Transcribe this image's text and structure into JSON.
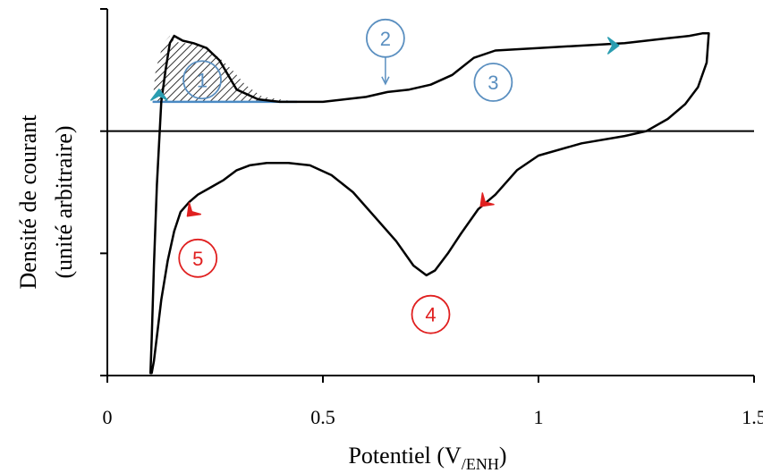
{
  "chart_data": {
    "type": "line",
    "title": "",
    "xlabel": {
      "main": "Potentiel (V",
      "sub": "/ENH",
      "close": ")"
    },
    "ylabel": {
      "line1": "Densité de courant",
      "line2": "(unité arbitraire)"
    },
    "xlim": [
      0,
      1.5
    ],
    "ylim": [
      -1.0,
      0.5
    ],
    "x_ticks": [
      {
        "value": 0,
        "label": "0"
      },
      {
        "value": 0.5,
        "label": "0.5"
      },
      {
        "value": 1,
        "label": "1"
      },
      {
        "value": 1.5,
        "label": "1.5"
      }
    ],
    "y_ticks": [
      -1.0,
      -0.5,
      0,
      0.5
    ],
    "zero_line": true,
    "grid": false,
    "series": [
      {
        "color": "#000000",
        "x": [
          0.1,
          0.103,
          0.108,
          0.115,
          0.125,
          0.135,
          0.145,
          0.155,
          0.175,
          0.2,
          0.23,
          0.26,
          0.3,
          0.35,
          0.4,
          0.45,
          0.5,
          0.55,
          0.6,
          0.65,
          0.7,
          0.75,
          0.8,
          0.85,
          0.9,
          1.0,
          1.1,
          1.2,
          1.3,
          1.35,
          1.38,
          1.395,
          1.39,
          1.37,
          1.34,
          1.3,
          1.25,
          1.2,
          1.1,
          1.0,
          0.95,
          0.9,
          0.86,
          0.82,
          0.79,
          0.76,
          0.74,
          0.71,
          0.67,
          0.62,
          0.57,
          0.52,
          0.47,
          0.42,
          0.37,
          0.33,
          0.3,
          0.27,
          0.24,
          0.21,
          0.19,
          0.17,
          0.155,
          0.14,
          0.125,
          0.115,
          0.108,
          0.103,
          0.1
        ],
        "y": [
          -0.99,
          -0.85,
          -0.55,
          -0.22,
          0.12,
          0.25,
          0.36,
          0.39,
          0.37,
          0.36,
          0.34,
          0.29,
          0.17,
          0.13,
          0.12,
          0.12,
          0.12,
          0.13,
          0.14,
          0.16,
          0.17,
          0.19,
          0.23,
          0.3,
          0.33,
          0.34,
          0.35,
          0.36,
          0.38,
          0.39,
          0.4,
          0.4,
          0.28,
          0.18,
          0.11,
          0.05,
          0.0,
          -0.02,
          -0.05,
          -0.1,
          -0.16,
          -0.26,
          -0.32,
          -0.42,
          -0.5,
          -0.57,
          -0.59,
          -0.55,
          -0.45,
          -0.35,
          -0.25,
          -0.18,
          -0.14,
          -0.13,
          -0.13,
          -0.14,
          -0.16,
          -0.2,
          -0.23,
          -0.26,
          -0.29,
          -0.33,
          -0.41,
          -0.53,
          -0.69,
          -0.84,
          -0.94,
          -0.99,
          -0.99
        ]
      },
      {
        "x": [
          0.105,
          0.108,
          0.112,
          0.12,
          0.13,
          0.14,
          0.145,
          0.155,
          0.17,
          0.2,
          0.23,
          0.26,
          0.29,
          0.32,
          0.36,
          0.4,
          0.44,
          0.44
        ],
        "y": [
          0.12,
          0.18,
          0.25,
          0.3,
          0.36,
          0.38,
          0.39,
          0.37,
          0.36,
          0.36,
          0.34,
          0.3,
          0.25,
          0.19,
          0.14,
          0.13,
          0.12,
          0.12
        ]
      }
    ],
    "annotations": [
      {
        "label": "1",
        "x": 0.22,
        "y": 0.21,
        "color": "#5a8fc0"
      },
      {
        "label": "2",
        "x": 0.645,
        "y": 0.38,
        "color": "#5a8fc0"
      },
      {
        "label": "3",
        "x": 0.895,
        "y": 0.2,
        "color": "#5a8fc0"
      },
      {
        "label": "4",
        "x": 0.75,
        "y": -0.75,
        "color": "#e02020"
      },
      {
        "label": "5",
        "x": 0.21,
        "y": -0.52,
        "color": "#e02020"
      }
    ],
    "direction_arrows": [
      {
        "x": 0.12,
        "y": 0.16,
        "color": "#2a9db0"
      },
      {
        "x": 1.18,
        "y": 0.35,
        "color": "#2a9db0"
      },
      {
        "x": 0.87,
        "y": -0.3,
        "color": "#e02020"
      },
      {
        "x": 0.19,
        "y": -0.34,
        "color": "#e02020"
      }
    ]
  }
}
